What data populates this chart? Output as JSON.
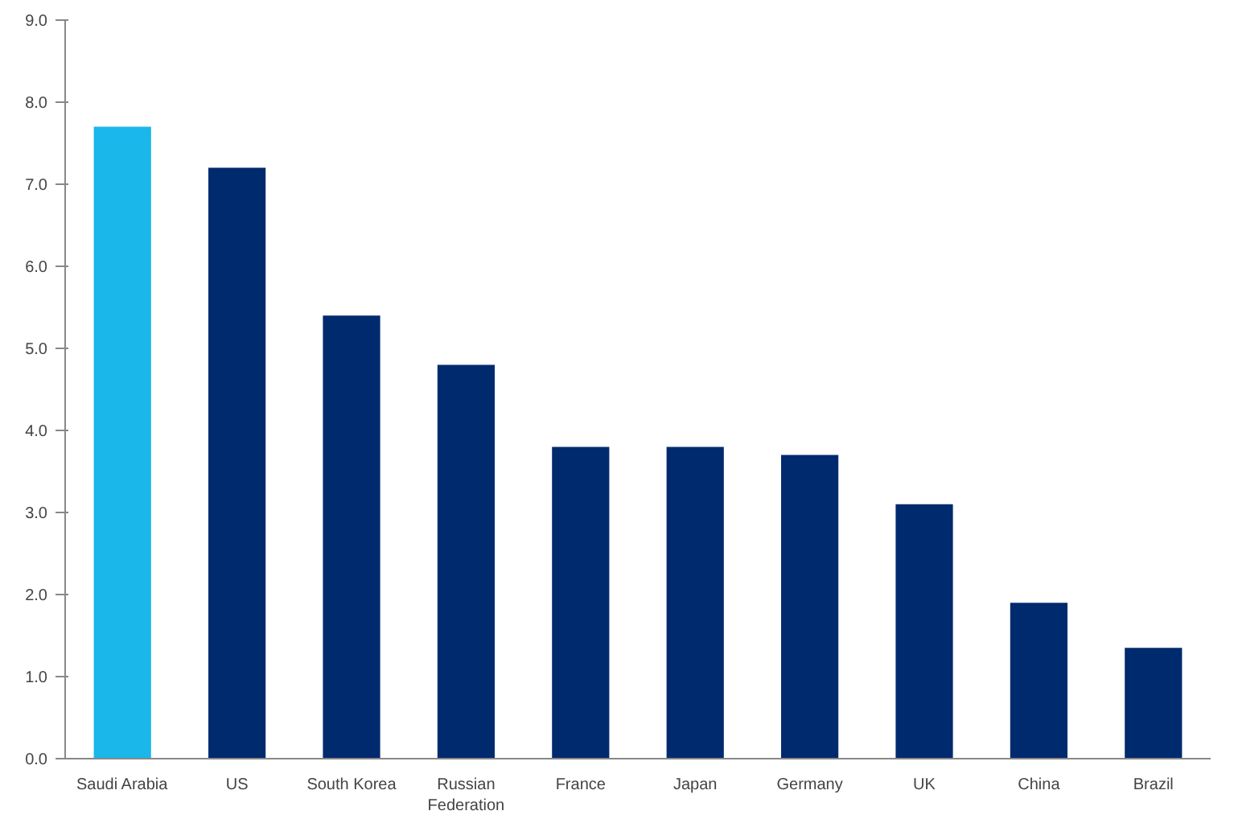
{
  "chart_data": {
    "type": "bar",
    "categories": [
      "Saudi Arabia",
      "US",
      "South Korea",
      "Russian Federation",
      "France",
      "Japan",
      "Germany",
      "UK",
      "China",
      "Brazil"
    ],
    "values": [
      7.7,
      7.2,
      5.4,
      4.8,
      3.8,
      3.8,
      3.7,
      3.1,
      1.9,
      1.35
    ],
    "colors": [
      "#1ab7ea",
      "#002a6e",
      "#002a6e",
      "#002a6e",
      "#002a6e",
      "#002a6e",
      "#002a6e",
      "#002a6e",
      "#002a6e",
      "#002a6e"
    ],
    "ylim": [
      0,
      9
    ],
    "yticks": [
      {
        "value": 0,
        "label": "0.0"
      },
      {
        "value": 1,
        "label": "1.0"
      },
      {
        "value": 2,
        "label": "2.0"
      },
      {
        "value": 3,
        "label": "3.0"
      },
      {
        "value": 4,
        "label": "4.0"
      },
      {
        "value": 5,
        "label": "5.0"
      },
      {
        "value": 6,
        "label": "6.0"
      },
      {
        "value": 7,
        "label": "7.0"
      },
      {
        "value": 8,
        "label": "8.0"
      },
      {
        "value": 9,
        "label": "9.0"
      }
    ],
    "grid": false
  }
}
